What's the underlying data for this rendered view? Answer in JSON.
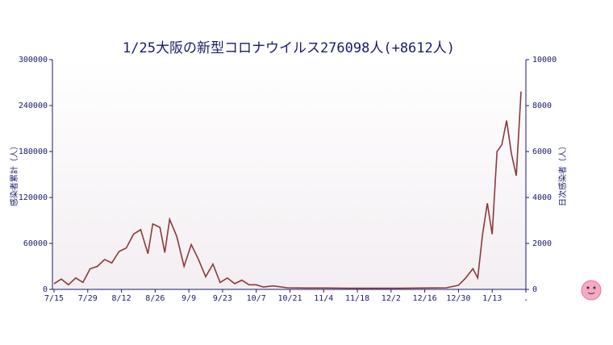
{
  "chart_data": {
    "type": "line",
    "title": "1/25大阪の新型コロナウイルス276098人(+8612人)",
    "ylabel": "感染者累計（人）",
    "y2label": "日次感染者（人）",
    "xlim": [
      "7/15",
      "1/27"
    ],
    "xticks": [
      "7/15",
      "7/29",
      "8/12",
      "8/26",
      "9/9",
      "9/23",
      "10/7",
      "10/21",
      "11/4",
      "11/18",
      "12/2",
      "12/16",
      "12/30",
      "1/13",
      {
        "value": "1/27",
        "label": "."
      }
    ],
    "ylim": [
      0,
      300000
    ],
    "yticks": [
      0,
      60000,
      120000,
      180000,
      240000,
      300000
    ],
    "y2lim": [
      0,
      10000
    ],
    "y2ticks": [
      0,
      2000,
      4000,
      6000,
      8000,
      10000
    ],
    "x": [
      "7/15",
      "7/18",
      "7/21",
      "7/24",
      "7/27",
      "7/30",
      "8/2",
      "8/5",
      "8/8",
      "8/11",
      "8/14",
      "8/17",
      "8/20",
      "8/23",
      "8/25",
      "8/28",
      "8/30",
      "9/1",
      "9/4",
      "9/7",
      "9/10",
      "9/13",
      "9/16",
      "9/19",
      "9/22",
      "9/25",
      "9/28",
      "10/1",
      "10/4",
      "10/7",
      "10/10",
      "10/14",
      "10/20",
      "10/28",
      "11/5",
      "11/15",
      "11/25",
      "12/5",
      "12/15",
      "12/25",
      "12/30",
      "1/2",
      "1/5",
      "1/7",
      "1/9",
      "1/11",
      "1/13",
      "1/15",
      "1/17",
      "1/19",
      "1/21",
      "1/23",
      "1/25"
    ],
    "series": [
      {
        "name": "日次感染者",
        "color": "#8b3a3a",
        "axis": "y2",
        "values": [
          250,
          450,
          200,
          500,
          300,
          900,
          1000,
          1300,
          1150,
          1650,
          1800,
          2400,
          2600,
          1550,
          2850,
          2700,
          1600,
          3050,
          2300,
          1000,
          1950,
          1300,
          550,
          1100,
          300,
          500,
          250,
          400,
          200,
          200,
          100,
          150,
          70,
          60,
          60,
          50,
          50,
          50,
          60,
          70,
          180,
          500,
          900,
          500,
          2400,
          3750,
          2400,
          6000,
          6300,
          7350,
          5900,
          4950,
          8612
        ]
      }
    ]
  }
}
